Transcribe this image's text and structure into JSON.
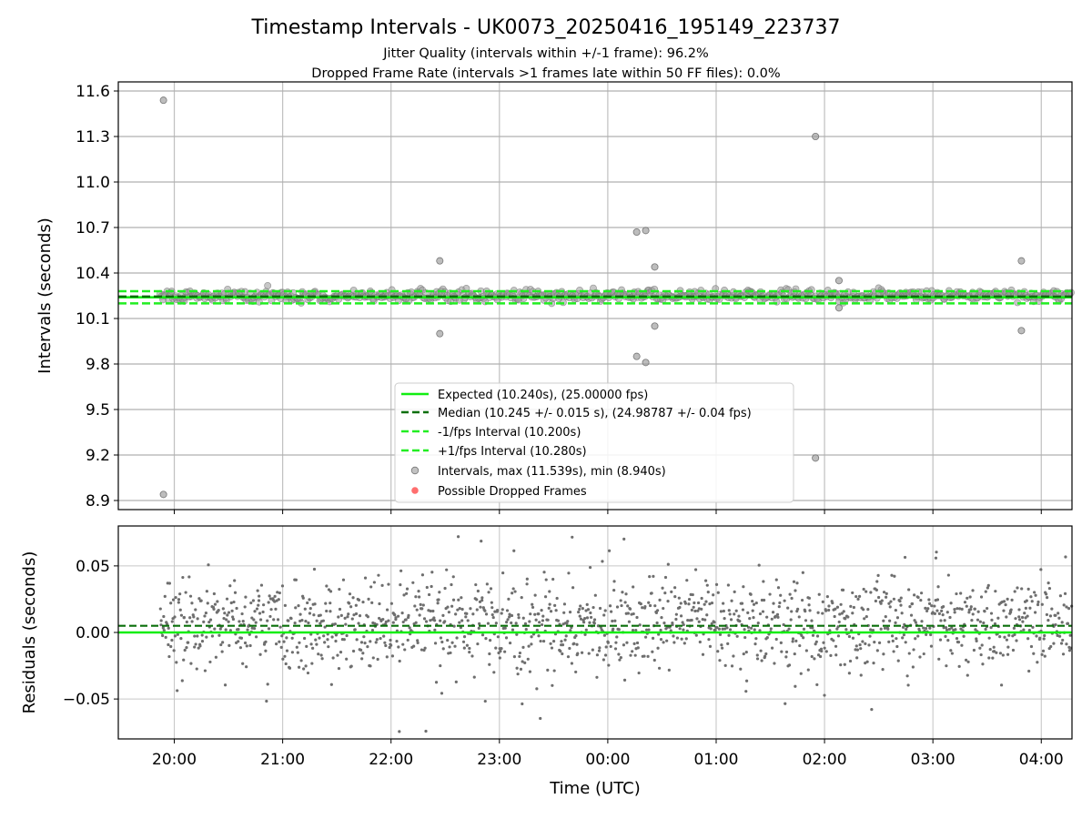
{
  "title": "Timestamp Intervals - UK0073_20250416_195149_223737",
  "subtitle_1": "Jitter Quality (intervals within +/-1 frame): 96.2%",
  "subtitle_2": "Dropped Frame Rate (intervals >1 frames late within 50 FF files): 0.0%",
  "colors": {
    "expected": "#11ee11",
    "median": "#0a6f0a",
    "fps_band": "#22ee22",
    "points": "#808080",
    "dropped": "#ff5555"
  },
  "chart_data": [
    {
      "type": "scatter",
      "ylabel": "Intervals (seconds)",
      "ylim": [
        8.84,
        11.66
      ],
      "yticks": [
        "8.9",
        "9.2",
        "9.5",
        "9.8",
        "10.1",
        "10.4",
        "10.7",
        "11.0",
        "11.3",
        "11.6"
      ],
      "xlim": [
        "19:29",
        "04:17"
      ],
      "grid": true,
      "legend_position": "lower-center",
      "reference_lines": {
        "expected": 10.24,
        "median": 10.245,
        "minus_1_fps": 10.2,
        "plus_1_fps": 10.28
      },
      "legend": [
        "Expected (10.240s), (25.00000 fps)",
        "Median (10.245 +/- 0.015 s), (24.98787 +/- 0.04 fps)",
        "-1/fps Interval (10.200s)",
        "+1/fps Interval (10.280s)",
        "Intervals, max (11.539s), min (8.940s)",
        "Possible Dropped Frames"
      ],
      "series": [
        {
          "name": "Intervals, max (11.539s), min (8.940s)",
          "x_range": [
            "19:52",
            "04:17"
          ],
          "typical_range": [
            10.2,
            10.3
          ],
          "outliers": [
            {
              "x": "19:54",
              "y": 11.539
            },
            {
              "x": "19:54",
              "y": 8.94
            },
            {
              "x": "22:27",
              "y": 10.48
            },
            {
              "x": "22:27",
              "y": 10.0
            },
            {
              "x": "00:16",
              "y": 10.67
            },
            {
              "x": "00:16",
              "y": 9.85
            },
            {
              "x": "00:21",
              "y": 10.68
            },
            {
              "x": "00:21",
              "y": 9.81
            },
            {
              "x": "00:26",
              "y": 10.44
            },
            {
              "x": "00:26",
              "y": 10.05
            },
            {
              "x": "01:55",
              "y": 11.3
            },
            {
              "x": "01:55",
              "y": 9.18
            },
            {
              "x": "02:08",
              "y": 10.35
            },
            {
              "x": "02:08",
              "y": 10.17
            },
            {
              "x": "03:49",
              "y": 10.48
            },
            {
              "x": "03:49",
              "y": 10.02
            }
          ]
        },
        {
          "name": "Possible Dropped Frames",
          "values": []
        }
      ]
    },
    {
      "type": "scatter",
      "ylabel": "Residuals (seconds)",
      "xlabel": "Time (UTC)",
      "ylim": [
        -0.08,
        0.08
      ],
      "yticks": [
        "−0.05",
        "0.00",
        "0.05"
      ],
      "xticks": [
        "20:00",
        "21:00",
        "22:00",
        "23:00",
        "00:00",
        "01:00",
        "02:00",
        "03:00",
        "04:00"
      ],
      "xlim": [
        "19:29",
        "04:17"
      ],
      "grid": true,
      "reference_lines": {
        "zero": 0.0,
        "median_offset": 0.005
      },
      "series": [
        {
          "name": "Residuals",
          "x_range": [
            "19:52",
            "04:17"
          ],
          "typical_range": [
            -0.04,
            0.04
          ],
          "extreme_range": [
            -0.076,
            0.075
          ]
        }
      ]
    }
  ]
}
